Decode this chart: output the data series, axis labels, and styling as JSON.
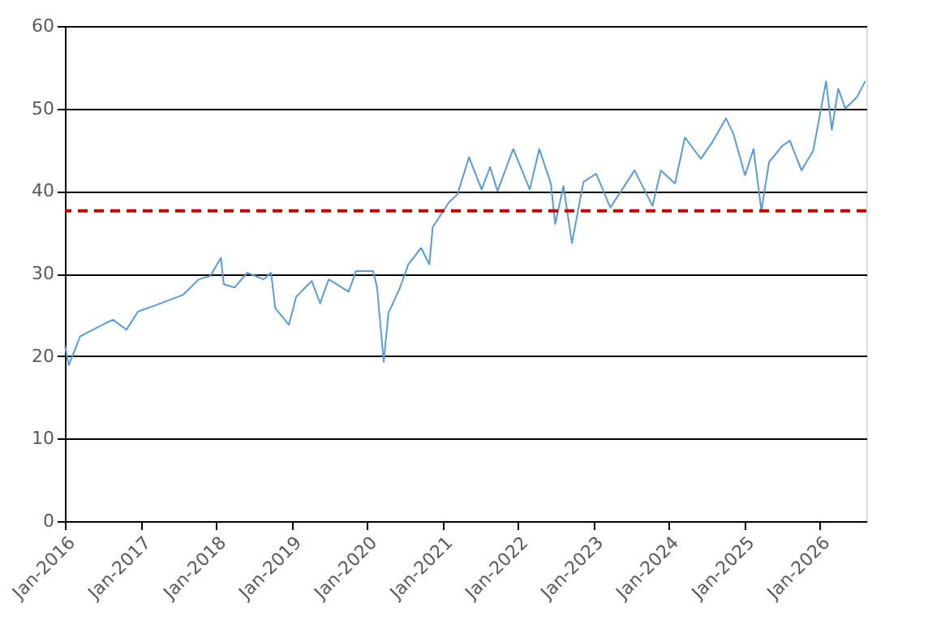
{
  "chart_data": {
    "type": "line",
    "x": [
      "2016-01-01",
      "2016-01-20",
      "2016-03-15",
      "2016-07-01",
      "2016-08-20",
      "2016-10-25",
      "2016-12-20",
      "2017-03-20",
      "2017-07-25",
      "2017-10-10",
      "2017-12-05",
      "2018-01-25",
      "2018-02-08",
      "2018-04-01",
      "2018-06-01",
      "2018-08-20",
      "2018-09-25",
      "2018-10-15",
      "2018-12-20",
      "2019-01-25",
      "2019-04-10",
      "2019-05-20",
      "2019-07-01",
      "2019-10-05",
      "2019-11-10",
      "2020-02-01",
      "2020-02-20",
      "2020-03-23",
      "2020-04-15",
      "2020-06-10",
      "2020-07-20",
      "2020-09-20",
      "2020-10-30",
      "2020-11-15",
      "2021-02-01",
      "2021-03-15",
      "2021-05-10",
      "2021-07-10",
      "2021-08-20",
      "2021-09-25",
      "2021-12-10",
      "2022-02-28",
      "2022-04-15",
      "2022-06-10",
      "2022-07-01",
      "2022-08-10",
      "2022-09-20",
      "2022-11-15",
      "2023-01-15",
      "2023-03-25",
      "2023-07-20",
      "2023-10-15",
      "2023-11-25",
      "2024-02-01",
      "2024-03-20",
      "2024-06-05",
      "2024-07-30",
      "2024-10-05",
      "2024-11-10",
      "2025-01-05",
      "2025-02-15",
      "2025-03-25",
      "2025-05-01",
      "2025-07-05",
      "2025-08-10",
      "2025-10-05",
      "2025-12-01",
      "2026-02-01",
      "2026-03-01",
      "2026-04-01",
      "2026-05-05",
      "2026-07-01",
      "2026-08-10"
    ],
    "series": [
      {
        "color": "#5b9bd5",
        "values": [
          21.3,
          18.9,
          22.4,
          23.8,
          24.4,
          23.2,
          25.4,
          26.2,
          27.4,
          29.3,
          29.7,
          31.9,
          28.7,
          28.3,
          30.1,
          29.3,
          30.1,
          25.8,
          23.8,
          27.2,
          29.1,
          26.4,
          29.3,
          27.8,
          30.3,
          30.3,
          28.3,
          19.3,
          25.2,
          28.3,
          31.1,
          33.1,
          31.1,
          35.6,
          38.6,
          39.6,
          44.1,
          40.2,
          42.9,
          40.0,
          45.1,
          40.2,
          45.1,
          40.9,
          36.0,
          40.6,
          33.7,
          41.1,
          42.1,
          38.0,
          42.5,
          38.2,
          42.5,
          40.9,
          46.5,
          43.9,
          45.9,
          48.8,
          46.9,
          41.9,
          45.1,
          37.6,
          43.5,
          45.5,
          46.1,
          42.5,
          44.9,
          53.3,
          47.4,
          52.4,
          50.0,
          51.4,
          53.3
        ]
      }
    ],
    "xlim": [
      "2016-01-01",
      "2026-08-15"
    ],
    "xticks": [
      {
        "value": "2016-01-01",
        "label": "Jan-2016"
      },
      {
        "value": "2017-01-01",
        "label": "Jan-2017"
      },
      {
        "value": "2018-01-01",
        "label": "Jan-2018"
      },
      {
        "value": "2019-01-01",
        "label": "Jan-2019"
      },
      {
        "value": "2020-01-01",
        "label": "Jan-2020"
      },
      {
        "value": "2021-01-01",
        "label": "Jan-2021"
      },
      {
        "value": "2022-01-01",
        "label": "Jan-2022"
      },
      {
        "value": "2023-01-01",
        "label": "Jan-2023"
      },
      {
        "value": "2024-01-01",
        "label": "Jan-2024"
      },
      {
        "value": "2025-01-01",
        "label": "Jan-2025"
      },
      {
        "value": "2026-01-01",
        "label": "Jan-2026"
      }
    ],
    "ylim": [
      0,
      60
    ],
    "yticks": [
      0,
      10,
      20,
      30,
      40,
      50,
      60
    ],
    "grid": "y",
    "ref_lines": [
      {
        "axis": "y",
        "value": 37.6,
        "color": "#c00000",
        "line_style": "dashed"
      }
    ]
  }
}
